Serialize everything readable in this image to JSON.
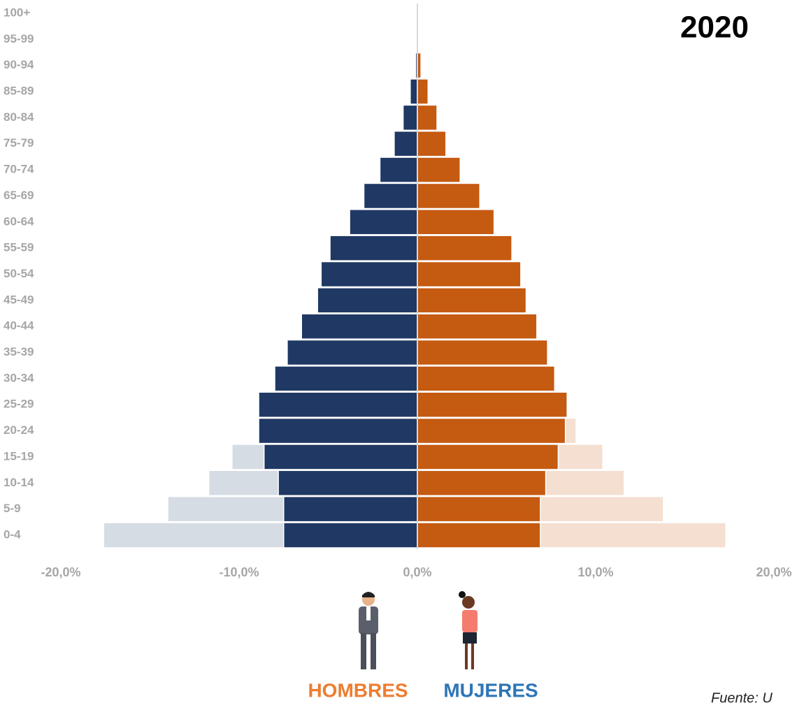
{
  "chart_data": {
    "type": "pyramid",
    "title": "2020",
    "source": "Fuente: U",
    "categories": [
      "0-4",
      "5-9",
      "10-14",
      "15-19",
      "20-24",
      "25-29",
      "30-34",
      "35-39",
      "40-44",
      "45-49",
      "50-54",
      "55-59",
      "60-64",
      "65-69",
      "70-74",
      "75-79",
      "80-84",
      "85-89",
      "90-94",
      "95-99",
      "100+"
    ],
    "series": [
      {
        "name": "HOMBRES",
        "color": "#203864",
        "label_color": "#ed7d31",
        "values": [
          -7.5,
          -7.5,
          -7.8,
          -8.6,
          -8.9,
          -8.9,
          -8.0,
          -7.3,
          -6.5,
          -5.6,
          -5.4,
          -4.9,
          -3.8,
          -3.0,
          -2.1,
          -1.3,
          -0.8,
          -0.4,
          -0.1,
          0,
          0
        ]
      },
      {
        "name": "MUJERES",
        "color": "#c55a11",
        "label_color": "#2e75b6",
        "values": [
          6.9,
          6.9,
          7.2,
          7.9,
          8.3,
          8.4,
          7.7,
          7.3,
          6.7,
          6.1,
          5.8,
          5.3,
          4.3,
          3.5,
          2.4,
          1.6,
          1.1,
          0.6,
          0.2,
          0,
          0
        ]
      }
    ],
    "background_series": [
      {
        "color": "#d6dce4",
        "values": [
          -17.6,
          -14.0,
          -11.7,
          -10.4,
          null,
          null,
          null,
          null,
          null,
          null,
          null,
          null,
          null,
          null,
          null,
          null,
          null,
          null,
          null,
          null,
          null
        ]
      },
      {
        "color": "#f4dfd1",
        "values": [
          17.3,
          13.8,
          11.6,
          10.4,
          8.9,
          null,
          null,
          null,
          null,
          null,
          null,
          null,
          null,
          null,
          null,
          null,
          null,
          null,
          null,
          null,
          null
        ]
      }
    ],
    "xlim": [
      -20,
      20
    ],
    "xticks": [
      {
        "value": -20,
        "label": "-20,0%"
      },
      {
        "value": -10,
        "label": "-10,0%"
      },
      {
        "value": 0,
        "label": "0,0%"
      },
      {
        "value": 10,
        "label": "10,0%"
      },
      {
        "value": 20,
        "label": "20,0%"
      }
    ]
  }
}
